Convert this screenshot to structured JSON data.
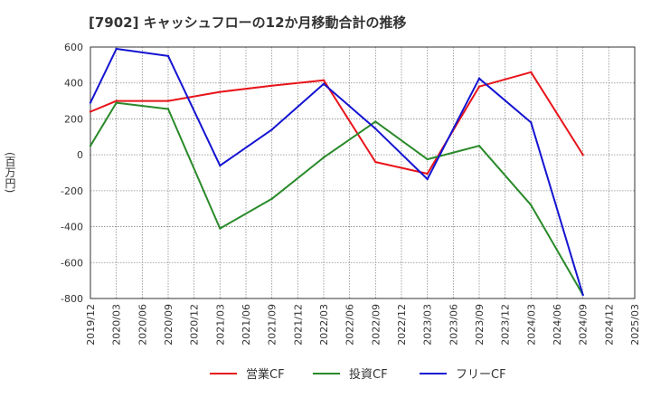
{
  "chart_data": {
    "type": "line",
    "title": "[7902]  キャッシュフローの12か月移動合計の推移",
    "xlabel": "",
    "ylabel": "(百万円)",
    "ylim": [
      -800,
      600
    ],
    "yticks": [
      -800,
      -600,
      -400,
      -200,
      0,
      200,
      400,
      600
    ],
    "categories": [
      "2019/12",
      "2020/03",
      "2020/06",
      "2020/09",
      "2020/12",
      "2021/03",
      "2021/06",
      "2021/09",
      "2021/12",
      "2022/03",
      "2022/06",
      "2022/09",
      "2022/12",
      "2023/03",
      "2023/06",
      "2023/09",
      "2023/12",
      "2024/03",
      "2024/06",
      "2024/09",
      "2024/12",
      "2025/03"
    ],
    "series": [
      {
        "name": "営業CF",
        "color": "#e8141a",
        "values": [
          240,
          300,
          null,
          300,
          null,
          350,
          null,
          385,
          null,
          415,
          null,
          -40,
          null,
          -105,
          null,
          380,
          null,
          460,
          null,
          0,
          null,
          null
        ]
      },
      {
        "name": "投資CF",
        "color": "#2a8a2a",
        "values": [
          50,
          290,
          null,
          255,
          null,
          -410,
          null,
          -245,
          null,
          -15,
          null,
          185,
          null,
          -25,
          null,
          50,
          null,
          -280,
          null,
          -780,
          null,
          null
        ]
      },
      {
        "name": "フリーCF",
        "color": "#1414d2",
        "values": [
          290,
          590,
          null,
          550,
          null,
          -60,
          null,
          140,
          null,
          395,
          null,
          145,
          null,
          -135,
          null,
          425,
          null,
          180,
          null,
          -780,
          null,
          null
        ]
      }
    ],
    "grid": true,
    "legend": "bottom"
  }
}
